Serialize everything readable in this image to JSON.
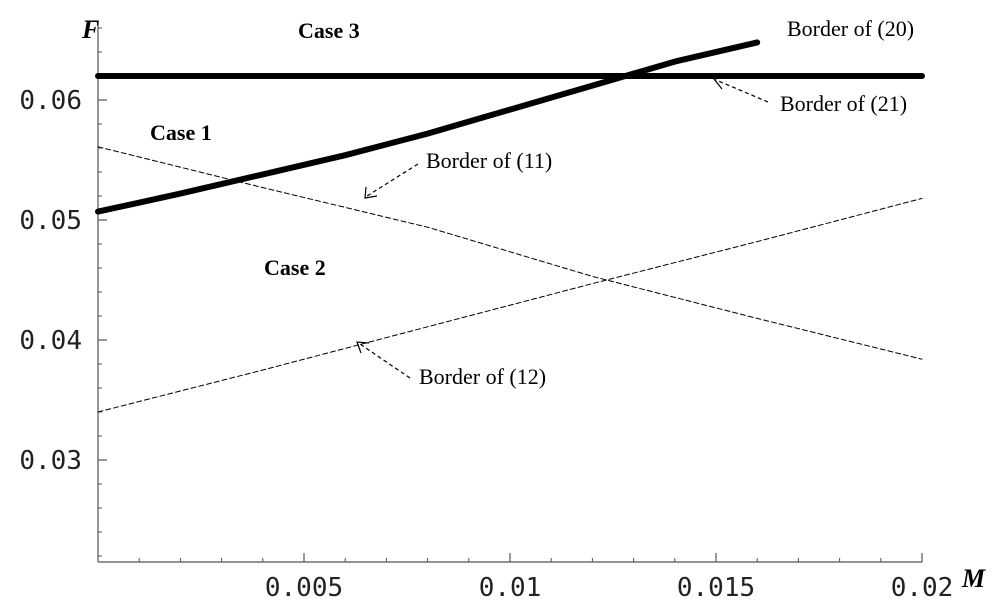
{
  "chart_data": {
    "type": "line",
    "xlabel": "M",
    "ylabel": "F",
    "xlim": [
      0,
      0.02
    ],
    "ylim": [
      0.0215,
      0.0665
    ],
    "x_ticks": [
      {
        "value": 0.005,
        "label": "0.005"
      },
      {
        "value": 0.01,
        "label": "0.01"
      },
      {
        "value": 0.015,
        "label": "0.015"
      },
      {
        "value": 0.02,
        "label": "0.02"
      }
    ],
    "y_ticks": [
      {
        "value": 0.03,
        "label": "0.03"
      },
      {
        "value": 0.04,
        "label": "0.04"
      },
      {
        "value": 0.05,
        "label": "0.05"
      },
      {
        "value": 0.06,
        "label": "0.06"
      }
    ],
    "x_minor_step": 0.001,
    "y_minor_step": 0.002,
    "grid": false,
    "series": [
      {
        "name": "Border of (21)",
        "style": "thick-solid",
        "x": [
          0,
          0.02
        ],
        "y": [
          0.062,
          0.062
        ]
      },
      {
        "name": "Border of (20)",
        "style": "thick-solid",
        "x": [
          0,
          0.002,
          0.004,
          0.006,
          0.008,
          0.01,
          0.012,
          0.014,
          0.016
        ],
        "y": [
          0.0507,
          0.0522,
          0.0538,
          0.0554,
          0.0572,
          0.0592,
          0.0612,
          0.0632,
          0.0648
        ]
      },
      {
        "name": "Border of (11)",
        "style": "dashed",
        "x": [
          0,
          0.004,
          0.008,
          0.012,
          0.016,
          0.02
        ],
        "y": [
          0.0561,
          0.0527,
          0.0494,
          0.0453,
          0.0418,
          0.0384
        ]
      },
      {
        "name": "Border of (12)",
        "style": "dashed",
        "x": [
          0,
          0.004,
          0.008,
          0.012,
          0.016,
          0.02
        ],
        "y": [
          0.034,
          0.0375,
          0.0411,
          0.0447,
          0.0482,
          0.0518
        ]
      }
    ],
    "region_labels": [
      "Case 1",
      "Case 2",
      "Case 3"
    ],
    "colors": {
      "line": "#000000",
      "axis": "#555555",
      "text": "#000000"
    }
  }
}
